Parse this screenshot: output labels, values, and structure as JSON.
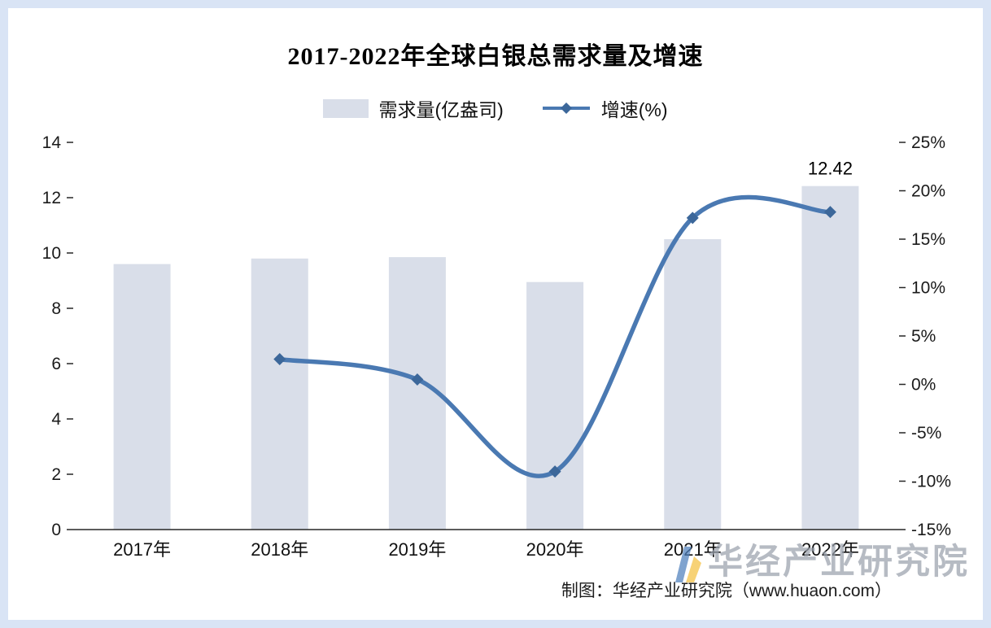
{
  "chart_data": {
    "type": "combo",
    "title": "2017-2022年全球白银总需求量及增速",
    "categories": [
      "2017年",
      "2018年",
      "2019年",
      "2020年",
      "2021年",
      "2022年"
    ],
    "series": [
      {
        "name": "需求量(亿盎司)",
        "type": "bar",
        "axis": "left",
        "color": "#d9dee9",
        "values": [
          9.6,
          9.8,
          9.85,
          8.95,
          10.5,
          12.42
        ]
      },
      {
        "name": "增速(%)",
        "type": "line",
        "axis": "right",
        "color": "#4a79b2",
        "marker_color": "#3c679a",
        "values": [
          null,
          2.6,
          0.5,
          -9,
          17.2,
          17.8
        ]
      }
    ],
    "left_axis": {
      "min": 0,
      "max": 14,
      "step": 2,
      "ticks": [
        "0",
        "2",
        "4",
        "6",
        "8",
        "10",
        "12",
        "14"
      ]
    },
    "right_axis": {
      "min": -15,
      "max": 25,
      "step": 5,
      "ticks": [
        "-15%",
        "-10%",
        "-5%",
        "0%",
        "5%",
        "10%",
        "15%",
        "20%",
        "25%"
      ]
    },
    "annotation": {
      "category": "2022年",
      "text": "12.42"
    },
    "legend_position": "top",
    "grid": false
  },
  "footer": {
    "credit": "制图：华经产业研究院（www.huaon.com）"
  },
  "watermark": {
    "text": "华经产业研究院"
  },
  "colors": {
    "frame": "#d9e4f5",
    "background": "#ffffff",
    "axis": "#262626",
    "logo_blue": "#4f81bd",
    "logo_yellow": "#f5c242"
  }
}
